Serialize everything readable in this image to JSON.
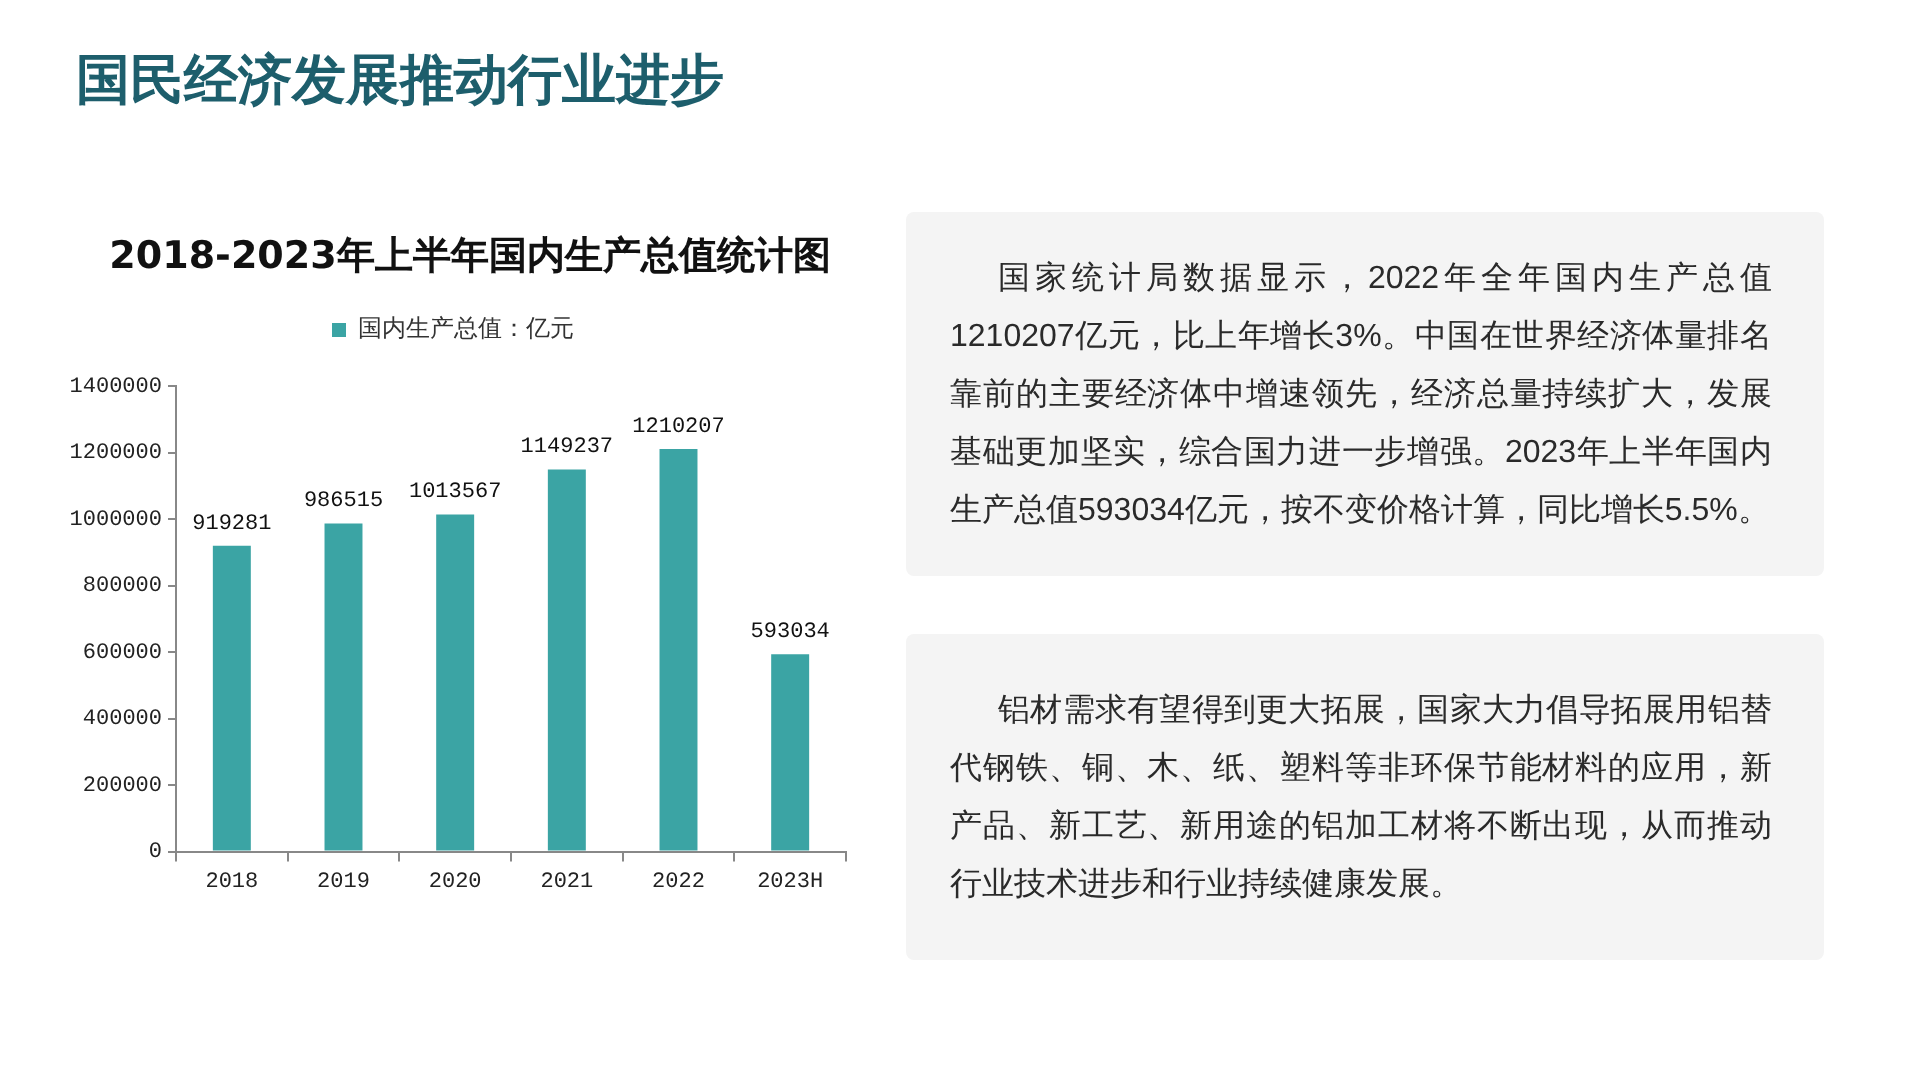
{
  "chart_data": [
    {
      "type": "bar",
      "title": "国民经济发展推动行业进步",
      "subtitle": "2018-2023年上半年国内生产总值统计图",
      "categories": [
        "2018",
        "2019",
        "2020",
        "2021",
        "2022",
        "2023H"
      ],
      "series": [
        {
          "name": "国内生产总值：亿元",
          "color": "#3ba4a4",
          "values": [
            919281,
            986515,
            1013567,
            1149237,
            1210207,
            593034
          ]
        }
      ],
      "ylim": [
        0,
        1400000
      ],
      "yticks": [
        0,
        200000,
        400000,
        600000,
        800000,
        1000000,
        1200000,
        1400000
      ],
      "grid": false,
      "legend": "top",
      "data_labels": true
    },
    {
      "type": "other",
      "annotations": [
        "国家统计局数据显示，2022年全年国内生产总值1210207亿元，比上年增长3%。中国在世界经济体量排名靠前的主要经济体中增速领先，经济总量持续扩大，发展基础更加坚实，综合国力进一步增强。2023年上半年国内生产总值593034亿元，按不变价格计算，同比增长5.5%。"
      ]
    },
    {
      "type": "other",
      "annotations": [
        "铝材需求有望得到更大拓展，国家大力倡导拓展用铝替代钢铁、铜、木、纸、塑料等非环保节能材料的应用，新产品、新工艺、新用途的铝加工材将不断出现，从而推动行业技术进步和行业持续健康发展。"
      ]
    }
  ]
}
